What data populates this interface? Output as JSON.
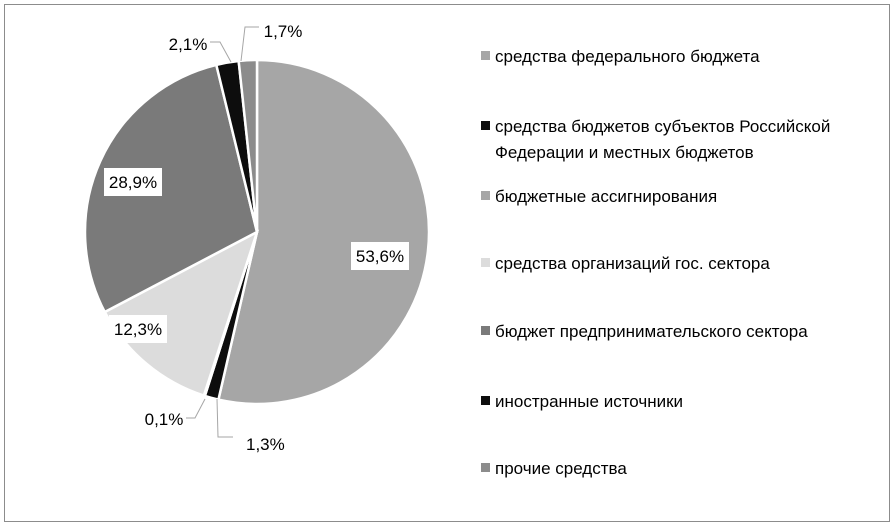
{
  "chart_data": {
    "type": "pie",
    "series": [
      {
        "label": "средства федерального бюджета",
        "value": 53.6,
        "text": "53,6%",
        "color": "#a6a6a6"
      },
      {
        "label": "средства бюджетов субъектов Российской Федерации и местных бюджетов",
        "legend_lines": [
          "средства бюджетов субъектов Российской",
          "Федерации и местных бюджетов"
        ],
        "value": 1.3,
        "text": "1,3%",
        "color": "#0d0d0d"
      },
      {
        "label": "бюджетные ассигнирования",
        "value": 0.1,
        "text": "0,1%",
        "color": "#a6a6a6"
      },
      {
        "label": "средства организаций гос. сектора",
        "value": 12.3,
        "text": "12,3%",
        "color": "#dcdcdc"
      },
      {
        "label": "бюджет предпринимательского сектора",
        "value": 28.9,
        "text": "28,9%",
        "color": "#7a7a7a"
      },
      {
        "label": "иностранные источники",
        "value": 2.1,
        "text": "2,1%",
        "color": "#0d0d0d"
      },
      {
        "label": "прочие средства",
        "value": 1.7,
        "text": "1,7%",
        "color": "#8c8c8c"
      }
    ],
    "legend_position": "right"
  }
}
